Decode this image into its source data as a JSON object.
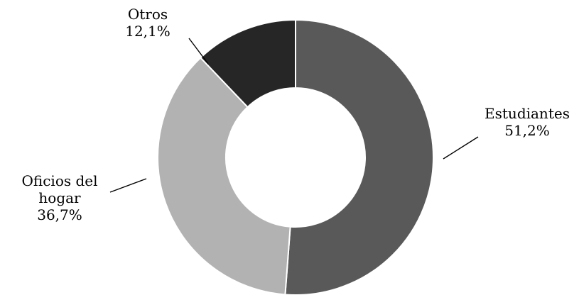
{
  "chart_data": {
    "type": "donut",
    "unit": "%",
    "slices": [
      {
        "name": "Estudiantes",
        "label_lines": [
          "Estudiantes",
          "51,2%"
        ],
        "value": 51.2,
        "color": "#595959"
      },
      {
        "name": "Oficios del hogar",
        "label_lines": [
          "Oficios del",
          "hogar",
          "36,7%"
        ],
        "value": 36.7,
        "color": "#b2b2b2"
      },
      {
        "name": "Otros",
        "label_lines": [
          "Otros",
          "12,1%"
        ],
        "value": 12.1,
        "color": "#262626"
      }
    ],
    "start": "12 o'clock",
    "direction": "clockwise",
    "legend": "none",
    "title": ""
  }
}
